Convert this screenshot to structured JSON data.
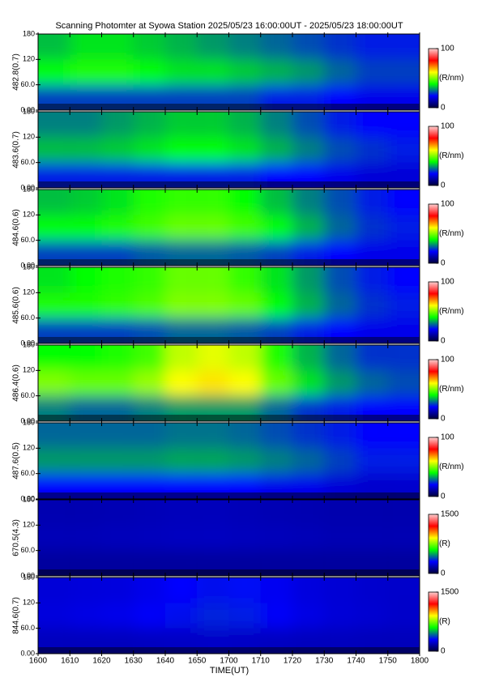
{
  "title": "Scanning Photomter at Syowa Station 2025/05/23 16:00:00UT - 2025/05/23 18:00:00UT",
  "xlabel": "TIME(UT)",
  "xlim": [
    0,
    120
  ],
  "xticks": [
    {
      "value": 0,
      "label": "1600"
    },
    {
      "value": 10,
      "label": "1610"
    },
    {
      "value": 20,
      "label": "1620"
    },
    {
      "value": 30,
      "label": "1630"
    },
    {
      "value": 40,
      "label": "1640"
    },
    {
      "value": 50,
      "label": "1650"
    },
    {
      "value": 60,
      "label": "1700"
    },
    {
      "value": 70,
      "label": "1710"
    },
    {
      "value": 80,
      "label": "1720"
    },
    {
      "value": 90,
      "label": "1730"
    },
    {
      "value": 100,
      "label": "1740"
    },
    {
      "value": 110,
      "label": "1750"
    },
    {
      "value": 120,
      "label": "1800"
    }
  ],
  "x_bins": [
    0,
    10,
    20,
    30,
    40,
    50,
    60,
    70,
    80,
    90,
    100,
    110,
    120
  ],
  "colormap": [
    "#00003c",
    "#0000ff",
    "#00ff00",
    "#ffff00",
    "#ff0000",
    "#ffd0d0"
  ],
  "chart_data": [
    {
      "type": "heatmap",
      "ylabel": "482.8(0.7)",
      "ylim": [
        0,
        180
      ],
      "yticks": [
        {
          "value": 0,
          "label": "0.00"
        },
        {
          "value": 60,
          "label": "60.0"
        },
        120,
        180
      ],
      "y_bins": [
        0,
        60,
        120,
        180
      ],
      "clim": [
        0,
        100
      ],
      "cticks": [
        0,
        100
      ],
      "clabel": "(R/nm)",
      "values": [
        [
          25,
          25,
          25,
          25,
          25,
          25,
          25,
          22,
          22,
          20,
          18,
          18
        ],
        [
          40,
          42,
          42,
          40,
          38,
          38,
          36,
          34,
          32,
          28,
          25,
          25
        ],
        [
          35,
          38,
          38,
          36,
          34,
          32,
          30,
          28,
          26,
          24,
          22,
          22
        ]
      ]
    },
    {
      "type": "heatmap",
      "ylabel": "483.6(0.7)",
      "ylim": [
        0,
        180
      ],
      "yticks": [
        {
          "value": 0,
          "label": "0.00"
        },
        {
          "value": 60,
          "label": "60.0"
        },
        120,
        180
      ],
      "y_bins": [
        0,
        60,
        120,
        180
      ],
      "clim": [
        0,
        100
      ],
      "cticks": [
        0,
        100
      ],
      "clabel": "(R/nm)",
      "values": [
        [
          22,
          22,
          22,
          22,
          22,
          22,
          22,
          20,
          20,
          18,
          16,
          16
        ],
        [
          35,
          35,
          36,
          38,
          40,
          40,
          38,
          34,
          30,
          26,
          24,
          22
        ],
        [
          30,
          30,
          32,
          34,
          36,
          36,
          34,
          30,
          26,
          22,
          20,
          20
        ]
      ]
    },
    {
      "type": "heatmap",
      "ylabel": "484.6(0.6)",
      "ylim": [
        0,
        180
      ],
      "yticks": [
        {
          "value": 0,
          "label": "0.00"
        },
        {
          "value": 60,
          "label": "60.0"
        },
        120,
        180
      ],
      "y_bins": [
        0,
        60,
        120,
        180
      ],
      "clim": [
        0,
        100
      ],
      "cticks": [
        0,
        100
      ],
      "clabel": "(R/nm)",
      "values": [
        [
          25,
          25,
          25,
          27,
          28,
          28,
          27,
          25,
          22,
          20,
          18,
          18
        ],
        [
          40,
          40,
          42,
          45,
          48,
          48,
          45,
          40,
          34,
          28,
          24,
          22
        ],
        [
          35,
          36,
          38,
          42,
          44,
          44,
          40,
          35,
          30,
          26,
          22,
          20
        ]
      ]
    },
    {
      "type": "heatmap",
      "ylabel": "485.6(0.6)",
      "ylim": [
        0,
        180
      ],
      "yticks": [
        {
          "value": 0,
          "label": "0.00"
        },
        {
          "value": 60,
          "label": "60.0"
        },
        120,
        180
      ],
      "y_bins": [
        0,
        60,
        120,
        180
      ],
      "clim": [
        0,
        100
      ],
      "cticks": [
        0,
        100
      ],
      "clabel": "(R/nm)",
      "values": [
        [
          25,
          25,
          25,
          26,
          28,
          28,
          27,
          25,
          22,
          20,
          18,
          18
        ],
        [
          42,
          42,
          44,
          46,
          50,
          50,
          48,
          40,
          34,
          28,
          24,
          22
        ],
        [
          38,
          40,
          42,
          44,
          48,
          48,
          44,
          38,
          32,
          26,
          22,
          20
        ]
      ]
    },
    {
      "type": "heatmap",
      "ylabel": "486.4(0.6)",
      "ylim": [
        0,
        180
      ],
      "yticks": [
        {
          "value": 0,
          "label": "0.00"
        },
        {
          "value": 60,
          "label": "60.0"
        },
        120,
        180
      ],
      "y_bins": [
        0,
        60,
        120,
        180
      ],
      "clim": [
        0,
        100
      ],
      "cticks": [
        0,
        100
      ],
      "clabel": "(R/nm)",
      "values": [
        [
          30,
          28,
          28,
          30,
          32,
          32,
          32,
          28,
          24,
          22,
          20,
          20
        ],
        [
          50,
          48,
          48,
          52,
          60,
          62,
          60,
          48,
          38,
          32,
          28,
          26
        ],
        [
          40,
          40,
          42,
          45,
          55,
          58,
          55,
          42,
          34,
          28,
          24,
          24
        ]
      ]
    },
    {
      "type": "heatmap",
      "ylabel": "487.6(0.5)",
      "ylim": [
        0,
        180
      ],
      "yticks": [
        {
          "value": 0,
          "label": "0.00"
        },
        {
          "value": 60,
          "label": "60.0"
        },
        120,
        180
      ],
      "y_bins": [
        0,
        60,
        120,
        180
      ],
      "clim": [
        0,
        100
      ],
      "cticks": [
        0,
        100
      ],
      "clabel": "(R/nm)",
      "values": [
        [
          20,
          20,
          20,
          20,
          20,
          20,
          20,
          18,
          18,
          16,
          15,
          15
        ],
        [
          32,
          32,
          32,
          32,
          33,
          33,
          32,
          30,
          28,
          25,
          22,
          22
        ],
        [
          28,
          28,
          28,
          28,
          29,
          29,
          28,
          26,
          24,
          22,
          20,
          20
        ]
      ]
    },
    {
      "type": "heatmap",
      "ylabel": "670.5(4.3)",
      "ylim": [
        0,
        180
      ],
      "yticks": [
        {
          "value": 0,
          "label": "0.00"
        },
        {
          "value": 60,
          "label": "60.0"
        },
        120,
        180
      ],
      "y_bins": [
        0,
        60,
        120,
        180
      ],
      "clim": [
        0,
        1500
      ],
      "cticks": [
        0,
        1500
      ],
      "clabel": "(R)",
      "values": [
        [
          150,
          150,
          150,
          150,
          150,
          150,
          150,
          150,
          150,
          150,
          150,
          150
        ],
        [
          190,
          190,
          195,
          200,
          205,
          205,
          200,
          195,
          190,
          185,
          185,
          185
        ],
        [
          180,
          180,
          185,
          190,
          195,
          195,
          190,
          185,
          180,
          175,
          175,
          175
        ]
      ]
    },
    {
      "type": "heatmap",
      "ylabel": "844.6(0.7)",
      "ylim": [
        0,
        180
      ],
      "yticks": [
        {
          "value": 0,
          "label": "0.00"
        },
        {
          "value": 60,
          "label": "60.0"
        },
        120,
        180
      ],
      "y_bins": [
        0,
        60,
        120,
        180
      ],
      "clim": [
        0,
        1500
      ],
      "cticks": [
        0,
        1500
      ],
      "clabel": "(R)",
      "values": [
        [
          200,
          200,
          200,
          205,
          210,
          215,
          210,
          205,
          200,
          200,
          195,
          195
        ],
        [
          250,
          260,
          270,
          290,
          320,
          340,
          330,
          290,
          260,
          240,
          230,
          220
        ],
        [
          240,
          245,
          250,
          270,
          300,
          320,
          310,
          280,
          250,
          235,
          225,
          220
        ]
      ]
    }
  ]
}
